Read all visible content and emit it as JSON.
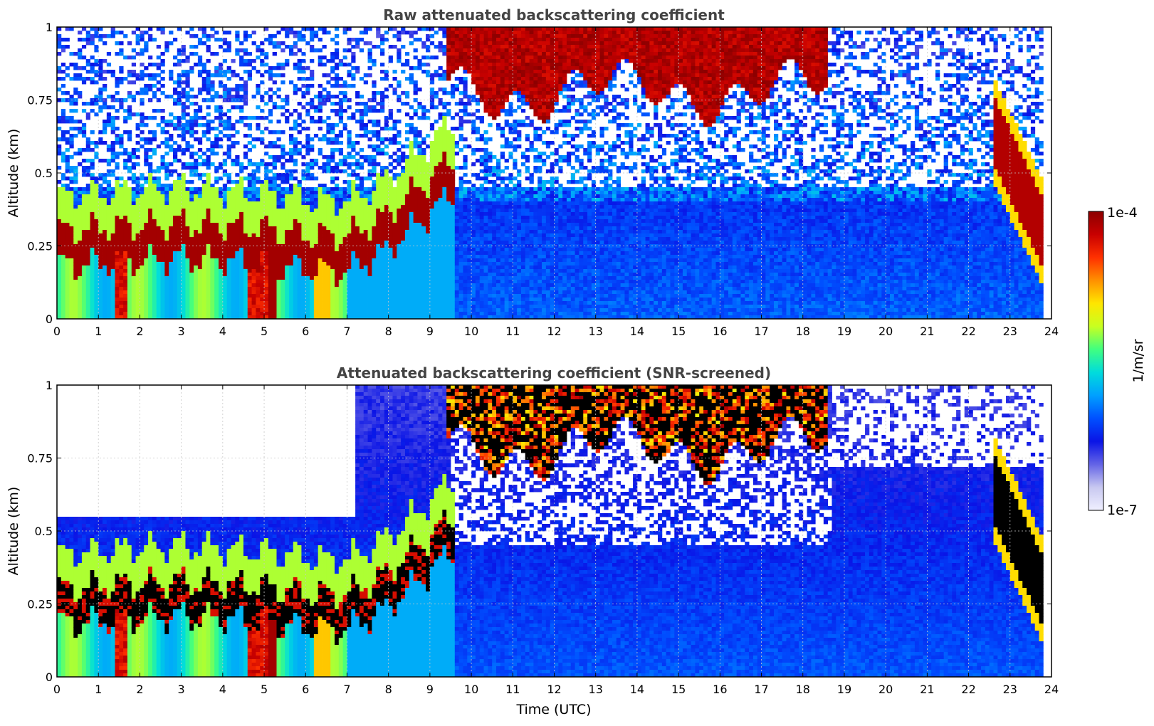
{
  "chart_data": [
    {
      "type": "heatmap",
      "title": "Raw attenuated backscattering coefficient",
      "xlabel": "",
      "ylabel": "Altitude (km)",
      "xlim": [
        0,
        24
      ],
      "ylim": [
        0,
        1
      ],
      "xticks": [
        "0",
        "1",
        "2",
        "3",
        "4",
        "5",
        "6",
        "7",
        "8",
        "9",
        "10",
        "11",
        "12",
        "13",
        "14",
        "15",
        "16",
        "17",
        "18",
        "19",
        "20",
        "21",
        "22",
        "23",
        "24"
      ],
      "yticks": [
        "0",
        "0.25",
        "0.5",
        "0.75",
        "1"
      ],
      "grid": true,
      "colorscale": "jet (log)",
      "color_range": [
        "1e-7",
        "1e-4"
      ],
      "features": [
        {
          "name": "boundary layer aerosol top",
          "time": [
            0,
            1,
            2,
            3,
            4,
            5,
            6,
            7,
            8,
            9,
            9.5
          ],
          "altitude": [
            0.3,
            0.31,
            0.32,
            0.33,
            0.32,
            0.31,
            0.29,
            0.28,
            0.36,
            0.48,
            0.55
          ]
        },
        {
          "name": "cloud layer",
          "time": [
            9.5,
            18.5
          ],
          "altitude_range": [
            0.75,
            1.0
          ]
        },
        {
          "name": "late cloud",
          "time": [
            22.6,
            23.8
          ],
          "altitude_range": [
            0.25,
            0.7
          ]
        },
        {
          "name": "precipitation / fog columns",
          "time": [
            1.4,
            1.7,
            4.6,
            5.3
          ]
        }
      ]
    },
    {
      "type": "heatmap",
      "title": "Attenuated backscattering coefficient (SNR-screened)",
      "xlabel": "Time (UTC)",
      "ylabel": "Altitude (km)",
      "xlim": [
        0,
        24
      ],
      "ylim": [
        0,
        1
      ],
      "xticks": [
        "0",
        "1",
        "2",
        "3",
        "4",
        "5",
        "6",
        "7",
        "8",
        "9",
        "10",
        "11",
        "12",
        "13",
        "14",
        "15",
        "16",
        "17",
        "18",
        "19",
        "20",
        "21",
        "22",
        "23",
        "24"
      ],
      "yticks": [
        "0",
        "0.25",
        "0.5",
        "0.75",
        "1"
      ],
      "grid": true,
      "colorscale": "jet (log), saturated values in black",
      "color_range": [
        "1e-7",
        "1e-4"
      ]
    }
  ],
  "colorbar": {
    "label": "1/m/sr",
    "max_label": "1e-4",
    "min_label": "1e-7",
    "stops": [
      "#f0f0ff",
      "#c8c8f0",
      "#6464e6",
      "#0a14e6",
      "#0050ff",
      "#00a0ff",
      "#00dcdc",
      "#40ff80",
      "#c8ff20",
      "#ffe600",
      "#ff9000",
      "#ff3000",
      "#c80000",
      "#8c0000"
    ]
  },
  "colors": {
    "title": "#444444",
    "grid": "#c8c8c8",
    "saturated": "#000000"
  }
}
